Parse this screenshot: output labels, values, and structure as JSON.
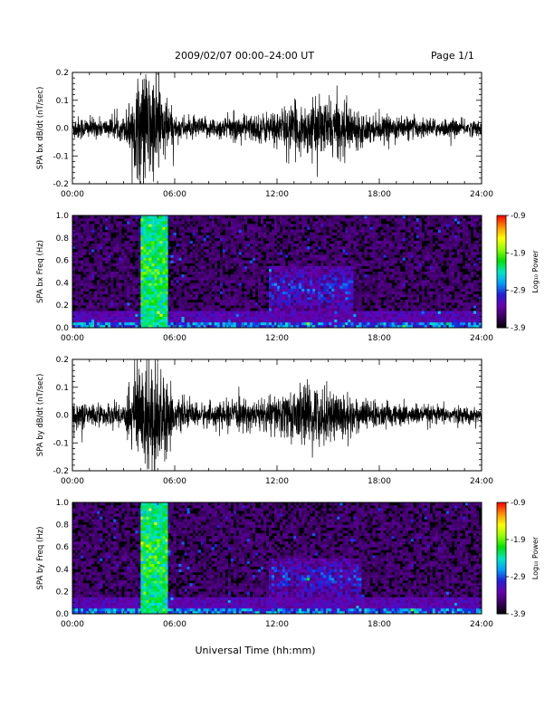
{
  "header": {
    "title": "2009/02/07  00:00–24:00 UT",
    "page": "Page 1/1"
  },
  "xlabel": "Universal Time (hh:mm)",
  "colors": {
    "trace": "#000000",
    "axes": "#000000",
    "colormap": [
      "#000000",
      "#3a0060",
      "#6a00b0",
      "#2020d8",
      "#00a0ff",
      "#00e8c0",
      "#00e000",
      "#90ff00",
      "#ffff00",
      "#ff9000",
      "#ff0000"
    ]
  },
  "chart_data": [
    {
      "type": "line",
      "ylabel": "SPA bx dB/dt (nT/sec)",
      "xlim": [
        "00:00",
        "24:00"
      ],
      "xticks": [
        "00:00",
        "06:00",
        "12:00",
        "18:00",
        "24:00"
      ],
      "ylim": [
        -0.2,
        0.2
      ],
      "yticks": [
        "-0.2",
        "-0.1",
        "0.0",
        "0.1",
        "0.2"
      ],
      "envelope": {
        "hours": [
          0,
          1,
          2,
          3,
          4,
          4.5,
          5,
          5.5,
          6,
          7,
          8,
          9,
          10,
          11,
          12,
          13,
          14,
          15,
          16,
          17,
          18,
          19,
          20,
          21,
          22,
          23,
          24
        ],
        "amplitude": [
          0.05,
          0.04,
          0.035,
          0.045,
          0.22,
          0.22,
          0.2,
          0.12,
          0.05,
          0.04,
          0.04,
          0.045,
          0.05,
          0.055,
          0.07,
          0.09,
          0.1,
          0.11,
          0.1,
          0.06,
          0.045,
          0.045,
          0.04,
          0.035,
          0.035,
          0.03,
          0.03
        ]
      }
    },
    {
      "type": "heatmap",
      "ylabel": "SPA bx Freq (Hz)",
      "xlim": [
        "00:00",
        "24:00"
      ],
      "xticks": [
        "00:00",
        "06:00",
        "12:00",
        "18:00",
        "24:00"
      ],
      "ylim": [
        0.0,
        1.0
      ],
      "yticks": [
        "0.0",
        "0.2",
        "0.4",
        "0.6",
        "0.8",
        "1.0"
      ],
      "colorbar": {
        "label": "Log₁₀ Power",
        "min": -3.9,
        "max": -0.9,
        "ticks": [
          "-0.9",
          "-1.9",
          "-2.9",
          "-3.9"
        ]
      },
      "features": [
        {
          "hours": [
            4.0,
            5.6
          ],
          "freq": [
            0.0,
            1.0
          ],
          "power": -1.9
        },
        {
          "hours": [
            11.5,
            16.5
          ],
          "freq": [
            0.15,
            0.55
          ],
          "power": -2.9
        },
        {
          "hours": [
            0.0,
            24.0
          ],
          "freq": [
            0.0,
            0.05
          ],
          "power": -2.9
        }
      ]
    },
    {
      "type": "line",
      "ylabel": "SPA by dB/dt (nT/sec)",
      "xlim": [
        "00:00",
        "24:00"
      ],
      "xticks": [
        "00:00",
        "06:00",
        "12:00",
        "18:00",
        "24:00"
      ],
      "ylim": [
        -0.2,
        0.2
      ],
      "yticks": [
        "-0.2",
        "-0.1",
        "0.0",
        "0.1",
        "0.2"
      ],
      "envelope": {
        "hours": [
          0,
          1,
          2,
          3,
          4,
          4.5,
          5,
          5.5,
          6,
          7,
          8,
          9,
          10,
          11,
          12,
          13,
          14,
          15,
          16,
          17,
          18,
          19,
          20,
          21,
          22,
          23,
          24
        ],
        "amplitude": [
          0.06,
          0.045,
          0.04,
          0.05,
          0.22,
          0.22,
          0.22,
          0.15,
          0.06,
          0.045,
          0.045,
          0.05,
          0.055,
          0.06,
          0.08,
          0.1,
          0.12,
          0.1,
          0.09,
          0.06,
          0.05,
          0.045,
          0.04,
          0.035,
          0.035,
          0.03,
          0.03
        ]
      }
    },
    {
      "type": "heatmap",
      "ylabel": "SPA by Freq (Hz)",
      "xlim": [
        "00:00",
        "24:00"
      ],
      "xticks": [
        "00:00",
        "06:00",
        "12:00",
        "18:00",
        "24:00"
      ],
      "ylim": [
        0.0,
        1.0
      ],
      "yticks": [
        "0.0",
        "0.2",
        "0.4",
        "0.6",
        "0.8",
        "1.0"
      ],
      "colorbar": {
        "label": "Log₁₀ Power",
        "min": -3.9,
        "max": -0.9,
        "ticks": [
          "-0.9",
          "-1.9",
          "-2.9",
          "-3.9"
        ]
      },
      "features": [
        {
          "hours": [
            4.0,
            5.6
          ],
          "freq": [
            0.0,
            1.0
          ],
          "power": -1.9
        },
        {
          "hours": [
            11.5,
            17.0
          ],
          "freq": [
            0.15,
            0.5
          ],
          "power": -2.9
        },
        {
          "hours": [
            0.0,
            24.0
          ],
          "freq": [
            0.0,
            0.05
          ],
          "power": -2.9
        }
      ]
    }
  ]
}
